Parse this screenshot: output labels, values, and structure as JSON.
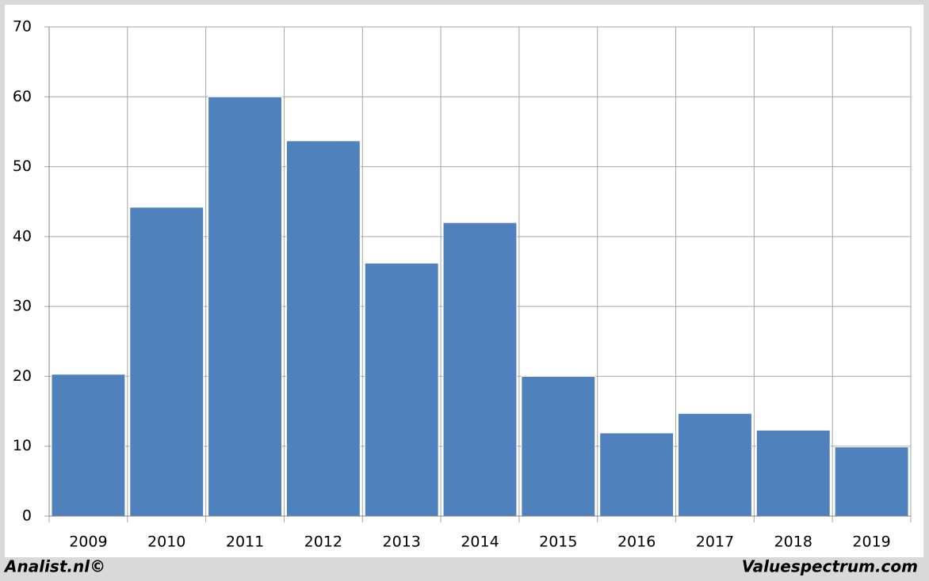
{
  "chart_data": {
    "type": "bar",
    "categories": [
      "2009",
      "2010",
      "2011",
      "2012",
      "2013",
      "2014",
      "2015",
      "2016",
      "2017",
      "2018",
      "2019"
    ],
    "values": [
      20.3,
      44.2,
      60.0,
      53.7,
      36.2,
      42.0,
      20.0,
      11.9,
      14.7,
      12.3,
      9.9
    ],
    "color": "#4f81bd",
    "ylim": [
      0,
      70
    ],
    "yticks": [
      0,
      10,
      20,
      30,
      40,
      50,
      60,
      70
    ],
    "grid": true,
    "footer_left": "Analist.nl©",
    "footer_right": "Valuespectrum.com"
  }
}
